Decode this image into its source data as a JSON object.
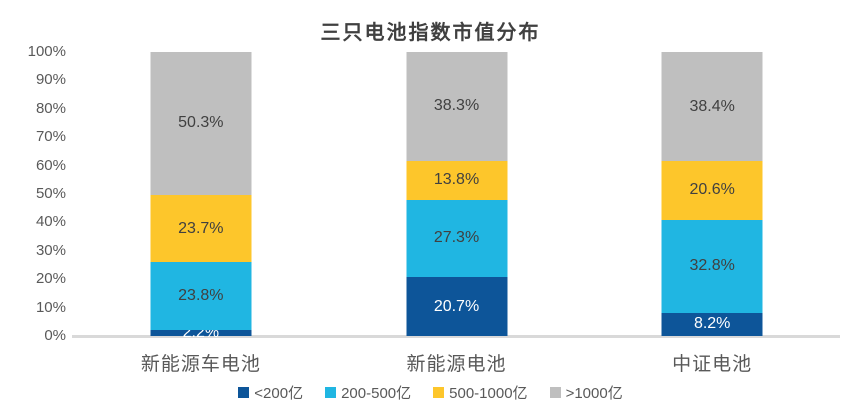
{
  "chart_data": {
    "type": "bar",
    "stacked": true,
    "title": "三只电池指数市值分布",
    "categories": [
      "新能源车电池",
      "新能源电池",
      "中证电池"
    ],
    "series": [
      {
        "name": "<200亿",
        "color": "#0d5599",
        "label_color": "#ffffff",
        "values": [
          2.2,
          20.7,
          8.2
        ]
      },
      {
        "name": "200-500亿",
        "color": "#20b6e2",
        "label_color": "#404040",
        "values": [
          23.8,
          27.3,
          32.8
        ]
      },
      {
        "name": "500-1000亿",
        "color": "#fdc62b",
        "label_color": "#404040",
        "values": [
          23.7,
          13.8,
          20.6
        ]
      },
      {
        "name": ">1000亿",
        "color": "#bfbfbf",
        "label_color": "#404040",
        "values": [
          50.3,
          38.3,
          38.4
        ]
      }
    ],
    "xlabel": "",
    "ylabel": "",
    "ylim": [
      0,
      100
    ],
    "y_ticks": [
      "0%",
      "10%",
      "20%",
      "30%",
      "40%",
      "50%",
      "60%",
      "70%",
      "80%",
      "90%",
      "100%"
    ],
    "value_suffix": "%",
    "grid": false,
    "legend_position": "bottom",
    "colors": {
      "axis_line": "#d9d9d9",
      "tick_text": "#595959",
      "title_text": "#404040"
    }
  }
}
